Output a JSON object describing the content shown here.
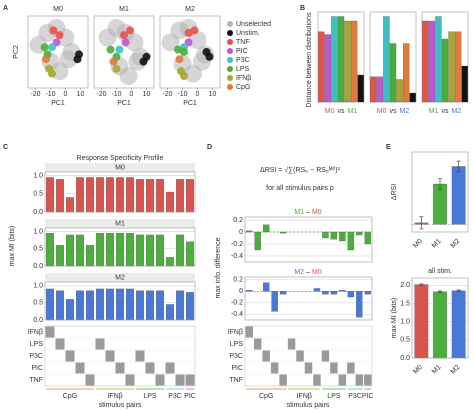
{
  "panel_labels": [
    "A",
    "B",
    "C",
    "D",
    "E"
  ],
  "chart_data": [
    {
      "type": "scatter",
      "facet_titles": [
        "M0",
        "M1",
        "M2"
      ],
      "facet_colors": [
        "#d9534f",
        "#4cae3c",
        "#4a78d8"
      ],
      "xlabel": "PC1",
      "ylabel": "PC2",
      "xlim": [
        -25,
        15
      ],
      "ylim": [
        -15,
        15
      ],
      "xticks": [
        -20,
        -10,
        0,
        10
      ],
      "series": [
        {
          "name": "Unselected",
          "color": "#b5b5b5",
          "facets": [
            {
              "x": [
                -18,
                -12,
                -6,
                0,
                4,
                -10,
                -4,
                2
              ],
              "y": [
                3,
                8,
                10,
                6,
                0,
                -4,
                -8,
                -3
              ]
            },
            {
              "x": [
                -16,
                -10,
                -4,
                2,
                6,
                -8,
                -2,
                4
              ],
              "y": [
                6,
                10,
                8,
                4,
                -2,
                -6,
                -10,
                -4
              ]
            },
            {
              "x": [
                -18,
                -12,
                -6,
                0,
                5,
                -10,
                -3,
                3
              ],
              "y": [
                4,
                9,
                10,
                5,
                -1,
                -5,
                -9,
                -4
              ]
            }
          ]
        },
        {
          "name": "Unstim.",
          "color": "#111111",
          "facets": [
            {
              "x": [
                8,
                9
              ],
              "y": [
                -3,
                -1
              ]
            },
            {
              "x": [
                8,
                10
              ],
              "y": [
                -4,
                -2
              ]
            },
            {
              "x": [
                6,
                8
              ],
              "y": [
                0,
                -2
              ]
            }
          ]
        },
        {
          "name": "TNF",
          "color": "#e8524a",
          "facets": [
            {
              "x": [
                -8,
                -4
              ],
              "y": [
                9,
                7
              ]
            },
            {
              "x": [
                -5,
                -1
              ],
              "y": [
                7,
                9
              ]
            },
            {
              "x": [
                -6,
                -2
              ],
              "y": [
                8,
                9
              ]
            }
          ]
        },
        {
          "name": "PIC",
          "color": "#c055d6",
          "facets": [
            {
              "x": [
                -6
              ],
              "y": [
                4
              ]
            },
            {
              "x": [
                -4
              ],
              "y": [
                4
              ]
            },
            {
              "x": [
                -6
              ],
              "y": [
                4
              ]
            }
          ]
        },
        {
          "name": "P3C",
          "color": "#3fbfc4",
          "facets": [
            {
              "x": [
                -9
              ],
              "y": [
                2
              ]
            },
            {
              "x": [
                -8
              ],
              "y": [
                1
              ]
            },
            {
              "x": [
                -9
              ],
              "y": [
                2
              ]
            }
          ]
        },
        {
          "name": "LPS",
          "color": "#4aae3c",
          "facets": [
            {
              "x": [
                -14,
                -12
              ],
              "y": [
                2,
                -1
              ]
            },
            {
              "x": [
                -14,
                -10
              ],
              "y": [
                1,
                -2
              ]
            },
            {
              "x": [
                -13,
                -9
              ],
              "y": [
                1,
                0
              ]
            }
          ]
        },
        {
          "name": "IFNβ",
          "color": "#a8a62a",
          "facets": [
            {
              "x": [
                -11,
                -9
              ],
              "y": [
                -7,
                -9
              ]
            },
            {
              "x": [
                -10
              ],
              "y": [
                -7
              ]
            },
            {
              "x": [
                -11,
                -9
              ],
              "y": [
                -8,
                -10
              ]
            }
          ]
        },
        {
          "name": "CpG",
          "color": "#e07b39",
          "facets": [
            {
              "x": [
                -13
              ],
              "y": [
                -3
              ]
            },
            {
              "x": [
                -12
              ],
              "y": [
                -4
              ]
            },
            {
              "x": [
                -12
              ],
              "y": [
                -3
              ]
            }
          ]
        }
      ]
    },
    {
      "type": "bar",
      "ylabel": "Distance between distributions",
      "ylim": [
        0,
        1
      ],
      "vs": "vs",
      "colors": [
        "#e8524a",
        "#c055d6",
        "#3fbfc4",
        "#4aae3c",
        "#a8a62a",
        "#e07b39",
        "#111111"
      ],
      "panels": [
        {
          "groups": [
            "M0",
            "M1"
          ],
          "group_colors": [
            "#d9534f",
            "#4cae3c"
          ],
          "values": [
            0.78,
            0.75,
            0.95,
            0.95,
            0.9,
            0.9,
            0.3
          ]
        },
        {
          "groups": [
            "M0",
            "M2"
          ],
          "group_colors": [
            "#d9534f",
            "#4a78d8"
          ],
          "values": [
            0.28,
            0.28,
            0.95,
            0.65,
            0.25,
            0.65,
            0.1
          ]
        },
        {
          "groups": [
            "M1",
            "M2"
          ],
          "group_colors": [
            "#4cae3c",
            "#4a78d8"
          ],
          "values": [
            0.9,
            0.9,
            0.95,
            0.7,
            0.78,
            0.78,
            0.4
          ]
        }
      ]
    },
    {
      "type": "bar",
      "title": "Response Specificity Profile",
      "ylabel": "max MI (bits)",
      "xlabel": "stimulus pairs",
      "ylim": [
        0,
        1.1
      ],
      "yticks": [
        {
          "value": 0,
          "label": "0.0"
        },
        {
          "value": 0.5,
          "label": "0.5"
        },
        {
          "value": 1,
          "label": "1.0"
        }
      ],
      "panels": [
        {
          "title": "M0",
          "color": "#d9534f",
          "values": [
            0.95,
            0.9,
            0.4,
            0.95,
            0.95,
            0.95,
            0.95,
            0.95,
            0.95,
            0.9,
            0.9,
            0.9,
            0.55,
            0.9,
            0.9
          ]
        },
        {
          "title": "M1",
          "color": "#4cae3c",
          "values": [
            0.95,
            0.6,
            0.9,
            0.9,
            0.6,
            0.95,
            0.95,
            0.95,
            0.95,
            0.9,
            0.9,
            0.9,
            0.25,
            0.9,
            0.7
          ]
        },
        {
          "title": "M2",
          "color": "#4a78d8",
          "values": [
            0.9,
            0.85,
            0.6,
            0.85,
            0.85,
            0.9,
            0.9,
            0.9,
            0.9,
            0.85,
            0.85,
            0.85,
            0.45,
            0.85,
            0.8
          ]
        }
      ],
      "matrix_rows": [
        "IFNβ",
        "LPS",
        "P3C",
        "PIC",
        "TNF"
      ],
      "row_colors": [
        "#a8a62a",
        "#4aae3c",
        "#3fbfc4",
        "#c055d6",
        "#e8524a"
      ],
      "pair_groups": [
        "CpG",
        "IFNβ",
        "LPS",
        "P3C",
        "PIC"
      ],
      "group_colors": [
        "#e07b39",
        "#a8a62a",
        "#4aae3c",
        "#3fbfc4",
        "#c055d6"
      ]
    },
    {
      "type": "bar",
      "formula": "ΔRSI = √∑(RSₚ − RSₚᴹ⁰)²",
      "formula_note": "for all stimulus pairs p",
      "ylabel": "max info. difference",
      "xlabel": "stimulus pairs",
      "ylim": [
        -0.5,
        0.25
      ],
      "yticks": [
        0.2,
        0,
        -0.2,
        -0.4
      ],
      "panels": [
        {
          "title_parts": [
            "M1",
            "–",
            "M0"
          ],
          "title_colors": [
            "#4cae3c",
            "#333333",
            "#d9534f"
          ],
          "color": "#4cae3c",
          "values": [
            0.02,
            -0.3,
            0.12,
            0.0,
            -0.02,
            0.0,
            0.0,
            0.0,
            0.0,
            -0.1,
            -0.12,
            -0.15,
            -0.3,
            -0.05,
            -0.2
          ]
        },
        {
          "title_parts": [
            "M2",
            "–",
            "M0"
          ],
          "title_colors": [
            "#4a78d8",
            "#333333",
            "#d9534f"
          ],
          "color": "#4a78d8",
          "values": [
            0.02,
            0.0,
            0.15,
            -0.35,
            -0.05,
            0.0,
            0.0,
            0.0,
            0.05,
            -0.05,
            -0.05,
            0.02,
            -0.1,
            -0.45,
            -0.05
          ]
        }
      ],
      "matrix_rows": [
        "IFNβ",
        "LPS",
        "P3C",
        "PIC",
        "TNF"
      ],
      "row_colors": [
        "#a8a62a",
        "#4aae3c",
        "#3fbfc4",
        "#c055d6",
        "#e8524a"
      ],
      "pair_groups": [
        "CpG",
        "IFNβ",
        "LPS",
        "P3C",
        "PIC"
      ],
      "group_colors": [
        "#e07b39",
        "#a8a62a",
        "#4aae3c",
        "#3fbfc4",
        "#c055d6"
      ]
    },
    {
      "type": "bar",
      "ylabel": "ΔRSI",
      "categories": [
        "M0",
        "M1",
        "M2"
      ],
      "colors": [
        "#d9534f",
        "#4cae3c",
        "#4a78d8"
      ],
      "values": [
        0.02,
        0.53,
        0.76
      ],
      "errors": [
        0.08,
        0.07,
        0.07
      ],
      "ylim": [
        -0.1,
        0.95
      ]
    },
    {
      "type": "bar",
      "title": "all stim.",
      "ylabel": "max MI (bits)",
      "categories": [
        "M0",
        "M1",
        "M2"
      ],
      "colors": [
        "#d9534f",
        "#4cae3c",
        "#4a78d8"
      ],
      "values": [
        2.02,
        1.82,
        1.85
      ],
      "errors": [
        0.02,
        0.02,
        0.02
      ],
      "ylim": [
        0,
        2.2
      ],
      "yticks": [
        {
          "value": 0,
          "label": "0.0"
        },
        {
          "value": 0.5,
          "label": "0.5"
        },
        {
          "value": 1,
          "label": "1.0"
        },
        {
          "value": 1.5,
          "label": "1.5"
        },
        {
          "value": 2,
          "label": "2.0"
        }
      ]
    }
  ]
}
